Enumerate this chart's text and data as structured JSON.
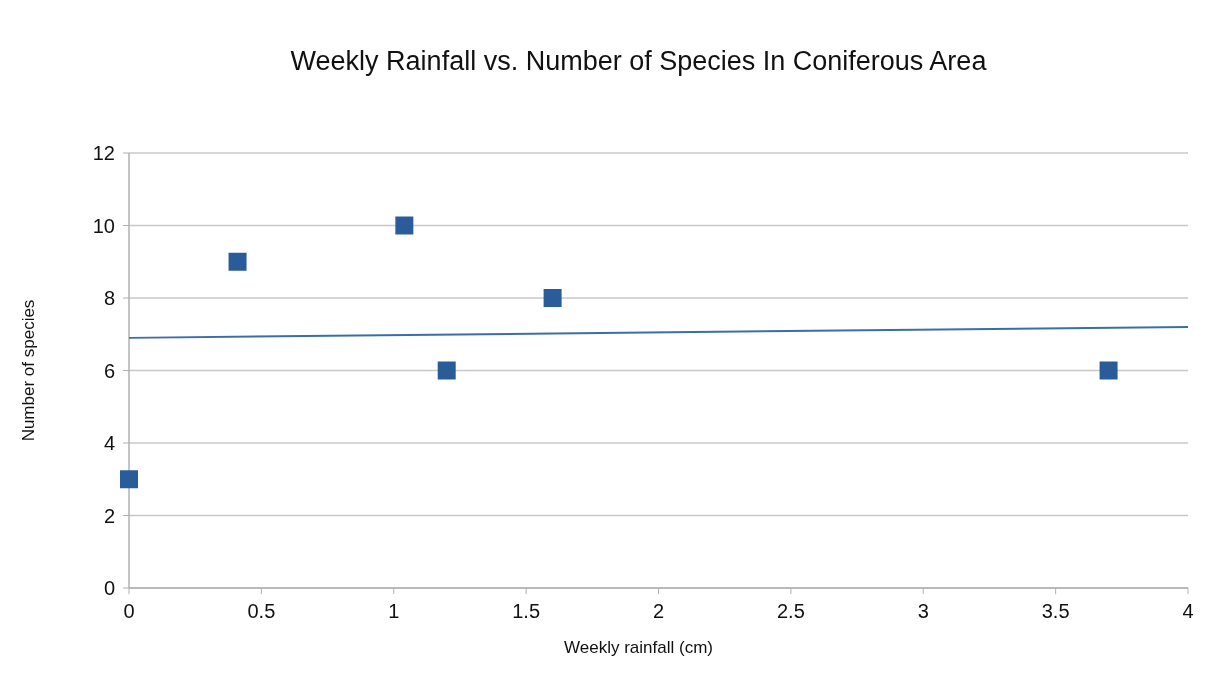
{
  "chart_data": {
    "type": "scatter",
    "title": "Weekly Rainfall vs. Number of Species In Coniferous Area",
    "xlabel": "Weekly rainfall (cm)",
    "ylabel": "Number of species",
    "xlim": [
      0,
      4
    ],
    "xticks": [
      0,
      0.5,
      1,
      1.5,
      2,
      2.5,
      3,
      3.5,
      4
    ],
    "ylim": [
      0,
      12
    ],
    "yticks": [
      0,
      2,
      4,
      6,
      8,
      10,
      12
    ],
    "grid": "y",
    "series": [
      {
        "marker": "square",
        "color": "#2a5c9a",
        "x": [
          0,
          0.41,
          1.04,
          1.2,
          1.6,
          3.7
        ],
        "values": [
          3,
          9,
          10,
          6,
          8,
          6
        ]
      },
      {
        "type": "line",
        "color": "#3b6ea8",
        "x": [
          0,
          4
        ],
        "values": [
          6.9,
          7.2
        ]
      }
    ]
  }
}
